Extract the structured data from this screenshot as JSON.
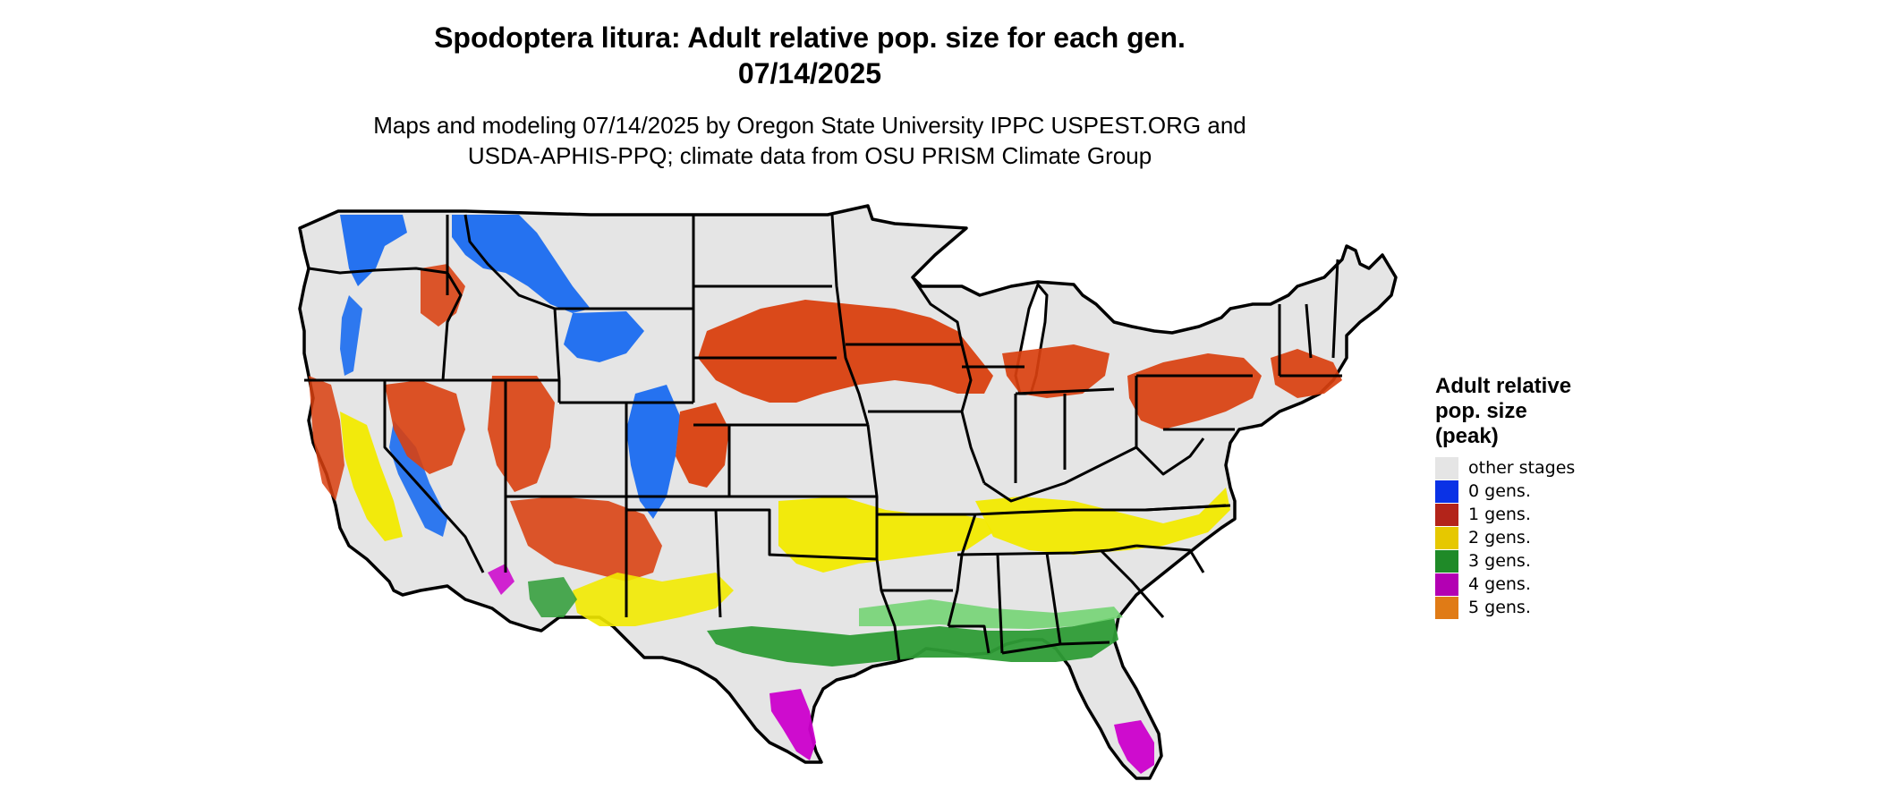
{
  "title": {
    "line1": "Spodoptera litura: Adult relative pop. size for each gen.",
    "line2": "07/14/2025"
  },
  "subtitle": {
    "line1": "Maps and modeling 07/14/2025 by Oregon State University IPPC USPEST.ORG and",
    "line2": "USDA-APHIS-PPQ; climate data from OSU PRISM Climate Group"
  },
  "legend": {
    "title_lines": [
      "Adult relative",
      "pop. size",
      "(peak)"
    ],
    "items": [
      {
        "label": "other stages",
        "color": "#e5e5e5"
      },
      {
        "label": "0 gens.",
        "color": "#0a32e6"
      },
      {
        "label": "1 gens.",
        "color": "#b3241a"
      },
      {
        "label": "2 gens.",
        "color": "#e6c800"
      },
      {
        "label": "3 gens.",
        "color": "#1f8a28"
      },
      {
        "label": "4 gens.",
        "color": "#b300b3"
      },
      {
        "label": "5 gens.",
        "color": "#e07b16"
      }
    ]
  },
  "map": {
    "land_color": "#e5e5e5",
    "border_color": "#000000",
    "zone_colors": {
      "zero": "#1a6cf0",
      "one": "#d9400f",
      "two": "#f2ea00",
      "three": "#2e9c36",
      "three_light": "#6fd46f",
      "four": "#cc00cc"
    }
  }
}
